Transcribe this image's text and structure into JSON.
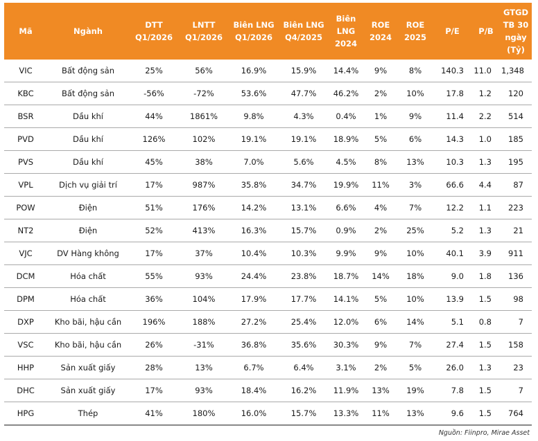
{
  "header_color": "#f08a24",
  "columns": [
    {
      "line1": "Mã",
      "line2": ""
    },
    {
      "line1": "Ngành",
      "line2": ""
    },
    {
      "line1": "DTT",
      "line2": "Q1/2026"
    },
    {
      "line1": "LNTT",
      "line2": "Q1/2026"
    },
    {
      "line1": "Biên LNG",
      "line2": "Q1/2026"
    },
    {
      "line1": "Biên LNG",
      "line2": "Q4/2025"
    },
    {
      "line1": "Biên",
      "line2": "LNG",
      "line3": "2024"
    },
    {
      "line1": "ROE",
      "line2": "2024"
    },
    {
      "line1": "ROE",
      "line2": "2025"
    },
    {
      "line1": "P/E",
      "line2": ""
    },
    {
      "line1": "P/B",
      "line2": ""
    },
    {
      "line1": "GTGD",
      "line2": "TB 30",
      "line3": "ngày",
      "line4": "(Tỷ)"
    }
  ],
  "rows": [
    [
      "VIC",
      "Bất động sản",
      "25%",
      "56%",
      "16.9%",
      "15.9%",
      "14.4%",
      "9%",
      "8%",
      "140.3",
      "11.0",
      "1,348"
    ],
    [
      "KBC",
      "Bất động sản",
      "-56%",
      "-72%",
      "53.6%",
      "47.7%",
      "46.2%",
      "2%",
      "10%",
      "17.8",
      "1.2",
      "120"
    ],
    [
      "BSR",
      "Dầu khí",
      "44%",
      "1861%",
      "9.8%",
      "4.3%",
      "0.4%",
      "1%",
      "9%",
      "11.4",
      "2.2",
      "514"
    ],
    [
      "PVD",
      "Dầu khí",
      "126%",
      "102%",
      "19.1%",
      "19.1%",
      "18.9%",
      "5%",
      "6%",
      "14.3",
      "1.0",
      "185"
    ],
    [
      "PVS",
      "Dầu khí",
      "45%",
      "38%",
      "7.0%",
      "5.6%",
      "4.5%",
      "8%",
      "13%",
      "10.3",
      "1.3",
      "195"
    ],
    [
      "VPL",
      "Dịch vụ giải trí",
      "17%",
      "987%",
      "35.8%",
      "34.7%",
      "19.9%",
      "11%",
      "3%",
      "66.6",
      "4.4",
      "87"
    ],
    [
      "POW",
      "Điện",
      "51%",
      "176%",
      "14.2%",
      "13.1%",
      "6.6%",
      "4%",
      "7%",
      "12.2",
      "1.1",
      "223"
    ],
    [
      "NT2",
      "Điện",
      "52%",
      "413%",
      "16.3%",
      "15.7%",
      "0.9%",
      "2%",
      "25%",
      "5.2",
      "1.3",
      "21"
    ],
    [
      "VJC",
      "DV Hàng không",
      "17%",
      "37%",
      "10.4%",
      "10.3%",
      "9.9%",
      "9%",
      "10%",
      "40.1",
      "3.9",
      "911"
    ],
    [
      "DCM",
      "Hóa chất",
      "55%",
      "93%",
      "24.4%",
      "23.8%",
      "18.7%",
      "14%",
      "18%",
      "9.0",
      "1.8",
      "136"
    ],
    [
      "DPM",
      "Hóa chất",
      "36%",
      "104%",
      "17.9%",
      "17.7%",
      "14.1%",
      "5%",
      "10%",
      "13.9",
      "1.5",
      "98"
    ],
    [
      "DXP",
      "Kho bãi, hậu cần",
      "196%",
      "188%",
      "27.2%",
      "25.4%",
      "12.0%",
      "6%",
      "14%",
      "5.1",
      "0.8",
      "7"
    ],
    [
      "VSC",
      "Kho bãi, hậu cần",
      "26%",
      "-31%",
      "36.8%",
      "35.6%",
      "30.3%",
      "9%",
      "7%",
      "27.4",
      "1.5",
      "158"
    ],
    [
      "HHP",
      "Sản xuất giấy",
      "28%",
      "13%",
      "6.7%",
      "6.4%",
      "3.1%",
      "2%",
      "5%",
      "26.0",
      "1.3",
      "23"
    ],
    [
      "DHC",
      "Sản xuất giấy",
      "17%",
      "93%",
      "18.4%",
      "16.2%",
      "11.9%",
      "13%",
      "19%",
      "7.8",
      "1.5",
      "7"
    ],
    [
      "HPG",
      "Thép",
      "41%",
      "180%",
      "16.0%",
      "15.7%",
      "13.3%",
      "11%",
      "13%",
      "9.6",
      "1.5",
      "764"
    ]
  ],
  "source": "Nguồn: Fiinpro, Mirae Asset"
}
